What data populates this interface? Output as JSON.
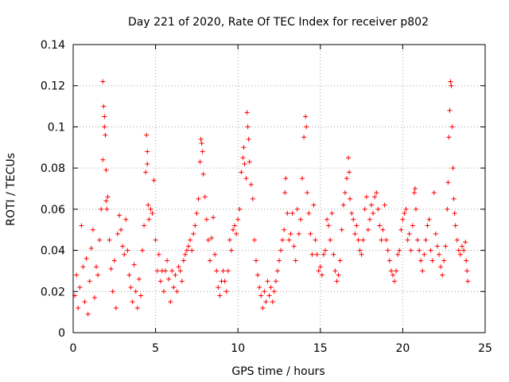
{
  "chart_data": {
    "type": "scatter",
    "title": "Day 221 of 2020, Rate Of TEC Index for receiver p802",
    "xlabel": "GPS time / hours",
    "ylabel": "ROTI / TECUs",
    "xlim": [
      0,
      25
    ],
    "ylim": [
      0,
      0.14
    ],
    "xticks": [
      0,
      5,
      10,
      15,
      20,
      25
    ],
    "xtick_labels": [
      "0",
      "5",
      "10",
      "15",
      "20",
      "25"
    ],
    "yticks": [
      0,
      0.02,
      0.04,
      0.06,
      0.08,
      0.1,
      0.12,
      0.14
    ],
    "ytick_labels": [
      "0",
      "0.02",
      "0.04",
      "0.06",
      "0.08",
      "0.1",
      "0.12",
      "0.14"
    ],
    "grid": true,
    "marker": "+",
    "color": "#ff0000",
    "series": [
      {
        "points": [
          [
            0.1,
            0.018
          ],
          [
            0.2,
            0.028
          ],
          [
            0.3,
            0.012
          ],
          [
            0.4,
            0.022
          ],
          [
            0.5,
            0.052
          ],
          [
            0.6,
            0.032
          ],
          [
            0.7,
            0.015
          ],
          [
            0.8,
            0.036
          ],
          [
            0.9,
            0.009
          ],
          [
            1.0,
            0.025
          ],
          [
            1.1,
            0.041
          ],
          [
            1.2,
            0.05
          ],
          [
            1.3,
            0.017
          ],
          [
            1.4,
            0.032
          ],
          [
            1.5,
            0.028
          ],
          [
            1.6,
            0.045
          ],
          [
            1.7,
            0.06
          ],
          [
            1.8,
            0.084
          ],
          [
            1.8,
            0.122
          ],
          [
            1.85,
            0.11
          ],
          [
            1.9,
            0.105
          ],
          [
            1.9,
            0.1
          ],
          [
            1.95,
            0.096
          ],
          [
            2.0,
            0.079
          ],
          [
            2.0,
            0.064
          ],
          [
            2.05,
            0.06
          ],
          [
            2.1,
            0.066
          ],
          [
            2.2,
            0.045
          ],
          [
            2.3,
            0.031
          ],
          [
            2.4,
            0.02
          ],
          [
            2.5,
            0.035
          ],
          [
            2.6,
            0.012
          ],
          [
            2.7,
            0.048
          ],
          [
            2.8,
            0.057
          ],
          [
            2.9,
            0.05
          ],
          [
            3.0,
            0.042
          ],
          [
            3.1,
            0.038
          ],
          [
            3.2,
            0.055
          ],
          [
            3.3,
            0.04
          ],
          [
            3.4,
            0.028
          ],
          [
            3.5,
            0.022
          ],
          [
            3.6,
            0.015
          ],
          [
            3.7,
            0.033
          ],
          [
            3.8,
            0.02
          ],
          [
            3.9,
            0.012
          ],
          [
            4.0,
            0.026
          ],
          [
            4.1,
            0.018
          ],
          [
            4.2,
            0.04
          ],
          [
            4.3,
            0.052
          ],
          [
            4.4,
            0.078
          ],
          [
            4.45,
            0.096
          ],
          [
            4.5,
            0.088
          ],
          [
            4.5,
            0.082
          ],
          [
            4.55,
            0.062
          ],
          [
            4.6,
            0.055
          ],
          [
            4.7,
            0.06
          ],
          [
            4.8,
            0.058
          ],
          [
            4.9,
            0.074
          ],
          [
            5.0,
            0.045
          ],
          [
            5.1,
            0.03
          ],
          [
            5.2,
            0.038
          ],
          [
            5.3,
            0.025
          ],
          [
            5.4,
            0.03
          ],
          [
            5.5,
            0.02
          ],
          [
            5.6,
            0.03
          ],
          [
            5.7,
            0.035
          ],
          [
            5.8,
            0.026
          ],
          [
            5.9,
            0.015
          ],
          [
            6.0,
            0.03
          ],
          [
            6.1,
            0.022
          ],
          [
            6.2,
            0.028
          ],
          [
            6.3,
            0.02
          ],
          [
            6.4,
            0.032
          ],
          [
            6.5,
            0.03
          ],
          [
            6.6,
            0.025
          ],
          [
            6.7,
            0.035
          ],
          [
            6.8,
            0.038
          ],
          [
            6.9,
            0.04
          ],
          [
            7.0,
            0.042
          ],
          [
            7.1,
            0.045
          ],
          [
            7.2,
            0.04
          ],
          [
            7.3,
            0.048
          ],
          [
            7.4,
            0.052
          ],
          [
            7.5,
            0.058
          ],
          [
            7.6,
            0.065
          ],
          [
            7.7,
            0.083
          ],
          [
            7.75,
            0.094
          ],
          [
            7.8,
            0.092
          ],
          [
            7.85,
            0.088
          ],
          [
            7.9,
            0.077
          ],
          [
            8.0,
            0.066
          ],
          [
            8.1,
            0.055
          ],
          [
            8.2,
            0.045
          ],
          [
            8.3,
            0.035
          ],
          [
            8.4,
            0.046
          ],
          [
            8.5,
            0.056
          ],
          [
            8.6,
            0.038
          ],
          [
            8.7,
            0.03
          ],
          [
            8.8,
            0.022
          ],
          [
            8.9,
            0.018
          ],
          [
            9.0,
            0.025
          ],
          [
            9.1,
            0.03
          ],
          [
            9.2,
            0.025
          ],
          [
            9.3,
            0.02
          ],
          [
            9.4,
            0.03
          ],
          [
            9.5,
            0.045
          ],
          [
            9.6,
            0.04
          ],
          [
            9.7,
            0.05
          ],
          [
            9.8,
            0.052
          ],
          [
            9.9,
            0.048
          ],
          [
            10.0,
            0.055
          ],
          [
            10.1,
            0.06
          ],
          [
            10.2,
            0.078
          ],
          [
            10.3,
            0.085
          ],
          [
            10.35,
            0.09
          ],
          [
            10.4,
            0.082
          ],
          [
            10.5,
            0.075
          ],
          [
            10.55,
            0.107
          ],
          [
            10.6,
            0.1
          ],
          [
            10.65,
            0.094
          ],
          [
            10.7,
            0.083
          ],
          [
            10.8,
            0.072
          ],
          [
            10.9,
            0.065
          ],
          [
            11.0,
            0.045
          ],
          [
            11.1,
            0.035
          ],
          [
            11.2,
            0.028
          ],
          [
            11.3,
            0.022
          ],
          [
            11.4,
            0.018
          ],
          [
            11.5,
            0.012
          ],
          [
            11.6,
            0.02
          ],
          [
            11.7,
            0.015
          ],
          [
            11.8,
            0.025
          ],
          [
            11.9,
            0.018
          ],
          [
            12.0,
            0.022
          ],
          [
            12.1,
            0.015
          ],
          [
            12.2,
            0.02
          ],
          [
            12.3,
            0.025
          ],
          [
            12.4,
            0.03
          ],
          [
            12.5,
            0.035
          ],
          [
            12.6,
            0.04
          ],
          [
            12.7,
            0.045
          ],
          [
            12.8,
            0.05
          ],
          [
            12.85,
            0.068
          ],
          [
            12.9,
            0.075
          ],
          [
            13.0,
            0.058
          ],
          [
            13.1,
            0.045
          ],
          [
            13.2,
            0.048
          ],
          [
            13.3,
            0.058
          ],
          [
            13.4,
            0.042
          ],
          [
            13.5,
            0.035
          ],
          [
            13.6,
            0.06
          ],
          [
            13.7,
            0.048
          ],
          [
            13.8,
            0.055
          ],
          [
            13.9,
            0.075
          ],
          [
            14.0,
            0.095
          ],
          [
            14.1,
            0.105
          ],
          [
            14.15,
            0.1
          ],
          [
            14.2,
            0.068
          ],
          [
            14.3,
            0.058
          ],
          [
            14.4,
            0.048
          ],
          [
            14.5,
            0.038
          ],
          [
            14.6,
            0.062
          ],
          [
            14.7,
            0.045
          ],
          [
            14.8,
            0.038
          ],
          [
            14.9,
            0.03
          ],
          [
            15.0,
            0.032
          ],
          [
            15.1,
            0.028
          ],
          [
            15.2,
            0.038
          ],
          [
            15.3,
            0.04
          ],
          [
            15.4,
            0.055
          ],
          [
            15.5,
            0.052
          ],
          [
            15.6,
            0.045
          ],
          [
            15.7,
            0.058
          ],
          [
            15.8,
            0.038
          ],
          [
            15.9,
            0.03
          ],
          [
            16.0,
            0.025
          ],
          [
            16.1,
            0.028
          ],
          [
            16.2,
            0.035
          ],
          [
            16.3,
            0.05
          ],
          [
            16.4,
            0.062
          ],
          [
            16.5,
            0.068
          ],
          [
            16.6,
            0.075
          ],
          [
            16.7,
            0.085
          ],
          [
            16.75,
            0.078
          ],
          [
            16.8,
            0.065
          ],
          [
            16.9,
            0.058
          ],
          [
            17.0,
            0.055
          ],
          [
            17.1,
            0.048
          ],
          [
            17.2,
            0.052
          ],
          [
            17.3,
            0.045
          ],
          [
            17.4,
            0.04
          ],
          [
            17.5,
            0.038
          ],
          [
            17.6,
            0.045
          ],
          [
            17.7,
            0.06
          ],
          [
            17.8,
            0.066
          ],
          [
            17.9,
            0.05
          ],
          [
            18.0,
            0.055
          ],
          [
            18.1,
            0.062
          ],
          [
            18.2,
            0.058
          ],
          [
            18.3,
            0.066
          ],
          [
            18.4,
            0.068
          ],
          [
            18.5,
            0.06
          ],
          [
            18.6,
            0.052
          ],
          [
            18.7,
            0.045
          ],
          [
            18.8,
            0.05
          ],
          [
            18.9,
            0.062
          ],
          [
            19.0,
            0.045
          ],
          [
            19.1,
            0.04
          ],
          [
            19.2,
            0.035
          ],
          [
            19.3,
            0.03
          ],
          [
            19.4,
            0.028
          ],
          [
            19.5,
            0.025
          ],
          [
            19.6,
            0.03
          ],
          [
            19.7,
            0.038
          ],
          [
            19.8,
            0.04
          ],
          [
            19.9,
            0.05
          ],
          [
            20.0,
            0.055
          ],
          [
            20.1,
            0.058
          ],
          [
            20.2,
            0.06
          ],
          [
            20.3,
            0.045
          ],
          [
            20.4,
            0.048
          ],
          [
            20.5,
            0.04
          ],
          [
            20.6,
            0.052
          ],
          [
            20.7,
            0.068
          ],
          [
            20.75,
            0.07
          ],
          [
            20.8,
            0.06
          ],
          [
            20.9,
            0.045
          ],
          [
            21.0,
            0.04
          ],
          [
            21.1,
            0.035
          ],
          [
            21.2,
            0.03
          ],
          [
            21.3,
            0.038
          ],
          [
            21.4,
            0.045
          ],
          [
            21.5,
            0.052
          ],
          [
            21.6,
            0.055
          ],
          [
            21.7,
            0.04
          ],
          [
            21.8,
            0.035
          ],
          [
            21.9,
            0.068
          ],
          [
            22.0,
            0.048
          ],
          [
            22.1,
            0.042
          ],
          [
            22.2,
            0.038
          ],
          [
            22.3,
            0.032
          ],
          [
            22.4,
            0.028
          ],
          [
            22.5,
            0.035
          ],
          [
            22.6,
            0.042
          ],
          [
            22.7,
            0.06
          ],
          [
            22.75,
            0.073
          ],
          [
            22.8,
            0.095
          ],
          [
            22.85,
            0.108
          ],
          [
            22.9,
            0.122
          ],
          [
            22.95,
            0.12
          ],
          [
            23.0,
            0.1
          ],
          [
            23.05,
            0.08
          ],
          [
            23.1,
            0.065
          ],
          [
            23.15,
            0.058
          ],
          [
            23.2,
            0.052
          ],
          [
            23.3,
            0.045
          ],
          [
            23.4,
            0.04
          ],
          [
            23.5,
            0.038
          ],
          [
            23.6,
            0.042
          ],
          [
            23.7,
            0.04
          ],
          [
            23.8,
            0.044
          ],
          [
            23.85,
            0.035
          ],
          [
            23.9,
            0.03
          ],
          [
            23.95,
            0.025
          ]
        ]
      }
    ]
  }
}
